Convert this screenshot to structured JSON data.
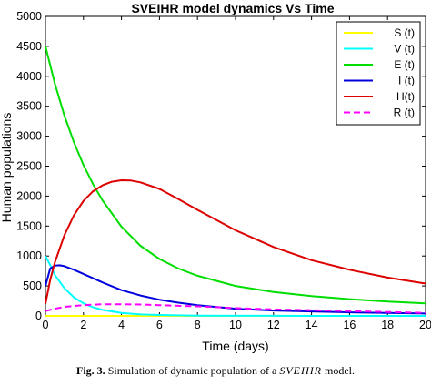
{
  "chart_data": {
    "type": "line",
    "title": "SVEIHR model dynamics Vs Time",
    "xlabel": "Time (days)",
    "ylabel": "Human populations",
    "xlim": [
      0,
      20
    ],
    "ylim": [
      0,
      5000
    ],
    "xticks": [
      0,
      2,
      4,
      6,
      8,
      10,
      12,
      14,
      16,
      18,
      20
    ],
    "yticks": [
      0,
      500,
      1000,
      1500,
      2000,
      2500,
      3000,
      3500,
      4000,
      4500,
      5000
    ],
    "grid": false,
    "legend_position": "top-right",
    "series": [
      {
        "name": "S (t)",
        "color": "#ffff00",
        "dash": false,
        "x": [
          0,
          0.5,
          1,
          2,
          3,
          4,
          6,
          8,
          10,
          12,
          14,
          16,
          18,
          20
        ],
        "y": [
          0,
          0,
          0,
          0,
          0,
          0,
          0,
          0,
          0,
          0,
          0,
          0,
          0,
          0
        ]
      },
      {
        "name": "V (t)",
        "color": "#00ffff",
        "dash": false,
        "x": [
          0,
          0.25,
          0.5,
          1,
          1.5,
          2,
          2.5,
          3,
          4,
          5,
          6,
          8,
          10,
          12,
          14,
          16,
          18,
          20
        ],
        "y": [
          1000,
          850,
          680,
          460,
          310,
          210,
          145,
          100,
          50,
          25,
          15,
          5,
          2,
          1,
          0,
          0,
          0,
          0
        ]
      },
      {
        "name": "E (t)",
        "color": "#00dd00",
        "dash": false,
        "x": [
          0,
          0.5,
          1,
          1.5,
          2,
          2.5,
          3,
          4,
          5,
          6,
          7,
          8,
          10,
          12,
          14,
          16,
          18,
          20
        ],
        "y": [
          4500,
          3870,
          3340,
          2900,
          2520,
          2200,
          1930,
          1490,
          1170,
          950,
          790,
          670,
          500,
          400,
          330,
          280,
          240,
          210
        ]
      },
      {
        "name": "I (t)",
        "color": "#0000dd",
        "dash": false,
        "x": [
          0,
          0.25,
          0.5,
          0.75,
          1,
          1.5,
          2,
          3,
          4,
          5,
          6,
          7,
          8,
          10,
          12,
          14,
          16,
          18,
          20
        ],
        "y": [
          500,
          790,
          840,
          845,
          830,
          770,
          700,
          560,
          430,
          340,
          270,
          220,
          180,
          120,
          90,
          75,
          60,
          50,
          40
        ]
      },
      {
        "name": "H(t)",
        "color": "#dd0000",
        "dash": false,
        "x": [
          0,
          0.25,
          0.5,
          1,
          1.5,
          2,
          2.5,
          3,
          3.5,
          4,
          4.5,
          5,
          6,
          7,
          8,
          10,
          12,
          14,
          16,
          18,
          20
        ],
        "y": [
          200,
          600,
          900,
          1350,
          1680,
          1920,
          2080,
          2180,
          2240,
          2265,
          2260,
          2230,
          2120,
          1950,
          1770,
          1430,
          1150,
          930,
          770,
          640,
          540
        ]
      },
      {
        "name": "R (t)",
        "color": "#ff00ff",
        "dash": true,
        "x": [
          0,
          0.5,
          1,
          2,
          3,
          4,
          5,
          6,
          8,
          10,
          12,
          14,
          16,
          18,
          20
        ],
        "y": [
          80,
          120,
          150,
          180,
          195,
          195,
          190,
          180,
          160,
          130,
          110,
          95,
          80,
          65,
          50
        ]
      }
    ]
  },
  "caption": {
    "prefix": "Fig. 3.",
    "text": "Simulation of dynamic population of a",
    "model": "SVEIHR",
    "suffix": "model."
  }
}
